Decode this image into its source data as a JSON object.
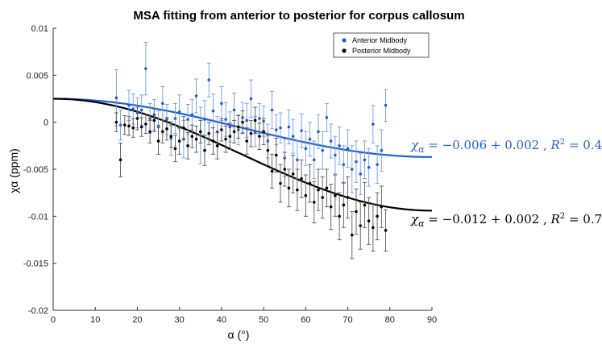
{
  "chart_data": {
    "type": "scatter",
    "title": "MSA fitting from anterior to posterior for corpus callosum",
    "xlabel": "α (°)",
    "ylabel": "χα (ppm)",
    "xlim": [
      0,
      90
    ],
    "ylim": [
      -0.02,
      0.01
    ],
    "x_ticks": [
      "0",
      "10",
      "20",
      "30",
      "40",
      "50",
      "60",
      "70",
      "80",
      "90"
    ],
    "y_ticks": [
      "0.01",
      "0.005",
      "0",
      "-0.005",
      "-0.01",
      "-0.015",
      "-0.02"
    ],
    "legend": {
      "position": "top-right",
      "entries": [
        "Anterior Midbody",
        "Posterior Midbody"
      ]
    },
    "series": [
      {
        "name": "Anterior Midbody",
        "color": "#1f5fd1",
        "points": [
          [
            15,
            0.0026,
            0.003
          ],
          [
            16,
            -0.0003,
            0.0016
          ],
          [
            18,
            0.0018,
            0.0016
          ],
          [
            19,
            0.0014,
            0.0016
          ],
          [
            20,
            0.001,
            0.0016
          ],
          [
            21,
            0.0013,
            0.0016
          ],
          [
            22,
            0.0057,
            0.0028
          ],
          [
            23,
            0.0004,
            0.0016
          ],
          [
            24,
            0.0008,
            0.0016
          ],
          [
            25,
            -0.0004,
            0.0016
          ],
          [
            26,
            0.002,
            0.0018
          ],
          [
            27,
            0.0003,
            0.0016
          ],
          [
            28,
            -0.0017,
            0.0018
          ],
          [
            29,
            0.0004,
            0.0016
          ],
          [
            30,
            0.0011,
            0.0018
          ],
          [
            31,
            -0.0018,
            0.002
          ],
          [
            32,
            0.0003,
            0.0016
          ],
          [
            33,
            0.0008,
            0.0016
          ],
          [
            34,
            0.0028,
            0.0018
          ],
          [
            35,
            -0.0014,
            0.003
          ],
          [
            36,
            0.0003,
            0.002
          ],
          [
            37,
            0.0045,
            0.0018
          ],
          [
            38,
            0.0012,
            0.0018
          ],
          [
            39,
            -0.001,
            0.0016
          ],
          [
            40,
            0.002,
            0.0018
          ],
          [
            41,
            0.0003,
            0.0018
          ],
          [
            42,
            -0.0005,
            0.0016
          ],
          [
            43,
            0.0013,
            0.0018
          ],
          [
            44,
            -0.0008,
            0.0016
          ],
          [
            45,
            0.0005,
            0.0016
          ],
          [
            46,
            0.0002,
            0.0018
          ],
          [
            47,
            0.0025,
            0.002
          ],
          [
            48,
            -0.001,
            0.0016
          ],
          [
            49,
            0.0004,
            0.0016
          ],
          [
            50,
            0.0001,
            0.0016
          ],
          [
            51,
            -0.002,
            0.0018
          ],
          [
            52,
            0.0013,
            0.002
          ],
          [
            53,
            -0.0008,
            0.0016
          ],
          [
            54,
            -0.0006,
            0.0016
          ],
          [
            55,
            -0.0038,
            0.002
          ],
          [
            56,
            -0.0005,
            0.0018
          ],
          [
            57,
            -0.0015,
            0.0018
          ],
          [
            58,
            -0.004,
            0.002
          ],
          [
            59,
            -0.0009,
            0.0018
          ],
          [
            60,
            -0.0028,
            0.0018
          ],
          [
            61,
            -0.0018,
            0.0018
          ],
          [
            62,
            -0.004,
            0.002
          ],
          [
            63,
            -0.001,
            0.0018
          ],
          [
            64,
            -0.003,
            0.002
          ],
          [
            65,
            0.0005,
            0.0015
          ],
          [
            66,
            -0.002,
            0.0018
          ],
          [
            67,
            -0.0035,
            0.002
          ],
          [
            68,
            -0.0025,
            0.002
          ],
          [
            69,
            -0.0045,
            0.002
          ],
          [
            70,
            -0.0028,
            0.002
          ],
          [
            71,
            -0.005,
            0.0025
          ],
          [
            72,
            -0.0042,
            0.0022
          ],
          [
            73,
            -0.0055,
            0.0022
          ],
          [
            74,
            -0.004,
            0.002
          ],
          [
            75,
            -0.0048,
            0.002
          ],
          [
            76,
            -0.0002,
            0.002
          ],
          [
            77,
            -0.0045,
            0.002
          ],
          [
            78,
            -0.003,
            0.0022
          ],
          [
            79,
            0.0018,
            0.0017
          ]
        ],
        "fit_equation": "χα = −0.006 + 0.002 , R² = 0.4",
        "fit_label_lhs": "χ",
        "fit_label_sub": "α",
        "fit_label_rhs": " = −0.006 + 0.002 , ",
        "fit_label_r": "R",
        "fit_label_sup": "2",
        "fit_label_val": " = 0.4",
        "fit": {
          "offset": -0.0037,
          "amplitude": 0.0062
        }
      },
      {
        "name": "Posterior Midbody",
        "color": "#000000",
        "points": [
          [
            15,
            0.0,
            0.001
          ],
          [
            16,
            -0.004,
            0.0018
          ],
          [
            17,
            -0.0003,
            0.001
          ],
          [
            18,
            -0.0004,
            0.001
          ],
          [
            19,
            -0.0006,
            0.001
          ],
          [
            20,
            0.0004,
            0.0012
          ],
          [
            21,
            -0.0005,
            0.001
          ],
          [
            22,
            -0.0002,
            0.001
          ],
          [
            23,
            -0.001,
            0.0012
          ],
          [
            24,
            0.0002,
            0.0012
          ],
          [
            25,
            -0.002,
            0.0014
          ],
          [
            26,
            -0.001,
            0.0012
          ],
          [
            27,
            -0.0007,
            0.0012
          ],
          [
            28,
            -0.0015,
            0.0012
          ],
          [
            29,
            -0.0028,
            0.0014
          ],
          [
            30,
            -0.002,
            0.0014
          ],
          [
            31,
            -0.0006,
            0.0012
          ],
          [
            32,
            -0.0025,
            0.0014
          ],
          [
            33,
            -0.0015,
            0.0012
          ],
          [
            34,
            -0.0018,
            0.0014
          ],
          [
            35,
            -0.001,
            0.0012
          ],
          [
            36,
            -0.003,
            0.0016
          ],
          [
            37,
            -0.0012,
            0.0012
          ],
          [
            38,
            -0.002,
            0.0014
          ],
          [
            39,
            -0.0025,
            0.0014
          ],
          [
            40,
            -0.0008,
            0.0012
          ],
          [
            41,
            -0.0018,
            0.0014
          ],
          [
            42,
            -0.0015,
            0.0014
          ],
          [
            43,
            -0.001,
            0.0012
          ],
          [
            44,
            -0.0005,
            0.0012
          ],
          [
            45,
            0.0,
            0.0012
          ],
          [
            46,
            -0.002,
            0.0014
          ],
          [
            47,
            -0.0012,
            0.0014
          ],
          [
            48,
            0.0002,
            0.0014
          ],
          [
            49,
            -0.0015,
            0.0014
          ],
          [
            50,
            -0.001,
            0.0014
          ],
          [
            51,
            -0.003,
            0.0016
          ],
          [
            52,
            -0.0052,
            0.0018
          ],
          [
            53,
            -0.0035,
            0.0018
          ],
          [
            54,
            -0.0065,
            0.002
          ],
          [
            55,
            -0.005,
            0.0018
          ],
          [
            56,
            -0.007,
            0.002
          ],
          [
            57,
            -0.0055,
            0.002
          ],
          [
            58,
            -0.0072,
            0.0022
          ],
          [
            59,
            -0.006,
            0.002
          ],
          [
            60,
            -0.0078,
            0.0022
          ],
          [
            61,
            -0.0065,
            0.002
          ],
          [
            62,
            -0.0085,
            0.0022
          ],
          [
            63,
            -0.0072,
            0.0022
          ],
          [
            64,
            -0.008,
            0.0022
          ],
          [
            65,
            -0.007,
            0.002
          ],
          [
            66,
            -0.009,
            0.0024
          ],
          [
            67,
            -0.0078,
            0.0022
          ],
          [
            68,
            -0.01,
            0.0025
          ],
          [
            69,
            -0.0088,
            0.0024
          ],
          [
            70,
            -0.008,
            0.0022
          ],
          [
            71,
            -0.012,
            0.0025
          ],
          [
            72,
            -0.0095,
            0.0024
          ],
          [
            73,
            -0.011,
            0.0025
          ],
          [
            74,
            -0.0088,
            0.0024
          ],
          [
            75,
            -0.0105,
            0.0025
          ],
          [
            76,
            -0.0112,
            0.0025
          ],
          [
            77,
            -0.01,
            0.0025
          ],
          [
            78,
            -0.009,
            0.0022
          ],
          [
            79,
            -0.0115,
            0.0022
          ]
        ],
        "fit_equation": "χα = −0.012 + 0.002 , R² = 0.7",
        "fit_label_lhs": "χ",
        "fit_label_sub": "α",
        "fit_label_rhs": " = −0.012 + 0.002 , ",
        "fit_label_r": "R",
        "fit_label_sup": "2",
        "fit_label_val": " = 0.7",
        "fit": {
          "offset": -0.0094,
          "amplitude": 0.0119
        }
      }
    ]
  }
}
